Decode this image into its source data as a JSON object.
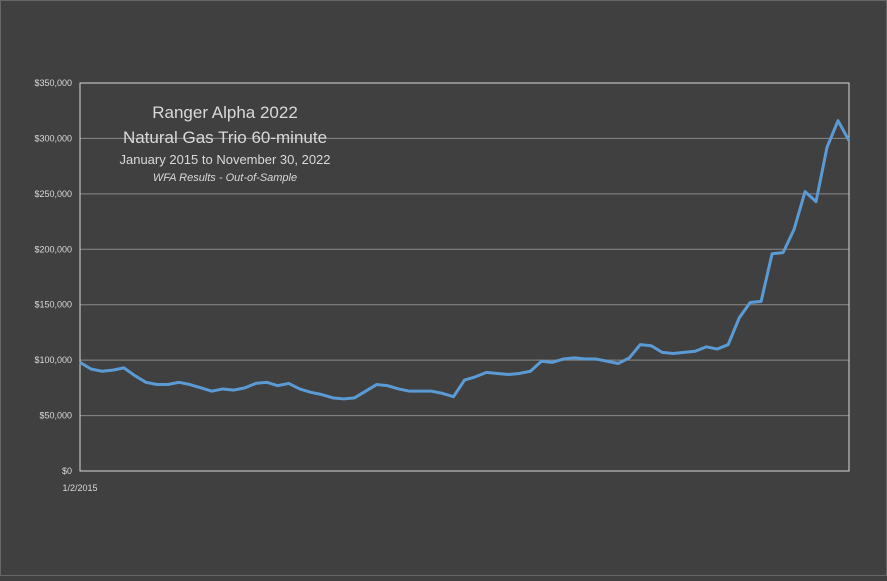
{
  "chart_data": {
    "type": "line",
    "title_lines": [
      "Ranger Alpha 2022",
      "Natural Gas Trio 60-minute",
      "January 2015 to November 30, 2022",
      "WFA Results - Out-of-Sample"
    ],
    "categories": [
      "1/2/2015",
      null,
      null,
      null,
      null,
      null,
      null,
      null,
      null,
      null,
      null,
      null,
      null,
      null,
      null,
      null,
      null,
      null,
      null,
      null,
      null,
      null,
      null,
      null,
      null,
      null,
      null,
      null,
      null,
      null,
      null,
      null,
      null,
      null,
      null,
      null,
      null,
      null,
      null,
      null,
      null,
      null,
      null,
      null,
      null,
      null,
      null,
      null,
      null,
      null,
      null,
      null,
      null,
      null,
      null,
      null,
      null,
      null,
      null,
      null,
      null,
      null,
      null,
      null,
      null,
      null,
      null,
      null,
      null,
      null,
      null
    ],
    "series": [
      {
        "color": "#5b9bd5",
        "values": [
          98000,
          92000,
          90000,
          91000,
          93000,
          86000,
          80000,
          78000,
          78000,
          80000,
          78000,
          75000,
          72000,
          74000,
          73000,
          75000,
          79000,
          80000,
          77000,
          79000,
          74000,
          71000,
          69000,
          66000,
          65000,
          66000,
          72000,
          78000,
          77000,
          74000,
          72000,
          72000,
          72000,
          70000,
          67000,
          82000,
          85000,
          89000,
          88000,
          87000,
          88000,
          90000,
          99000,
          98000,
          101000,
          102000,
          101000,
          101000,
          99000,
          97000,
          102000,
          114000,
          113000,
          107000,
          106000,
          107000,
          108000,
          112000,
          110000,
          114000,
          138000,
          152000,
          153000,
          196000,
          197000,
          218000,
          252000,
          243000,
          292000,
          316000,
          298000
        ]
      }
    ],
    "ylim": [
      0,
      350000
    ],
    "yticks": [
      {
        "value": 0,
        "label": "$0"
      },
      {
        "value": 50000,
        "label": "$50,000"
      },
      {
        "value": 100000,
        "label": "$100,000"
      },
      {
        "value": 150000,
        "label": "$150,000"
      },
      {
        "value": 200000,
        "label": "$200,000"
      },
      {
        "value": 250000,
        "label": "$250,000"
      },
      {
        "value": 300000,
        "label": "$300,000"
      },
      {
        "value": 350000,
        "label": "$350,000"
      }
    ],
    "grid": true
  }
}
